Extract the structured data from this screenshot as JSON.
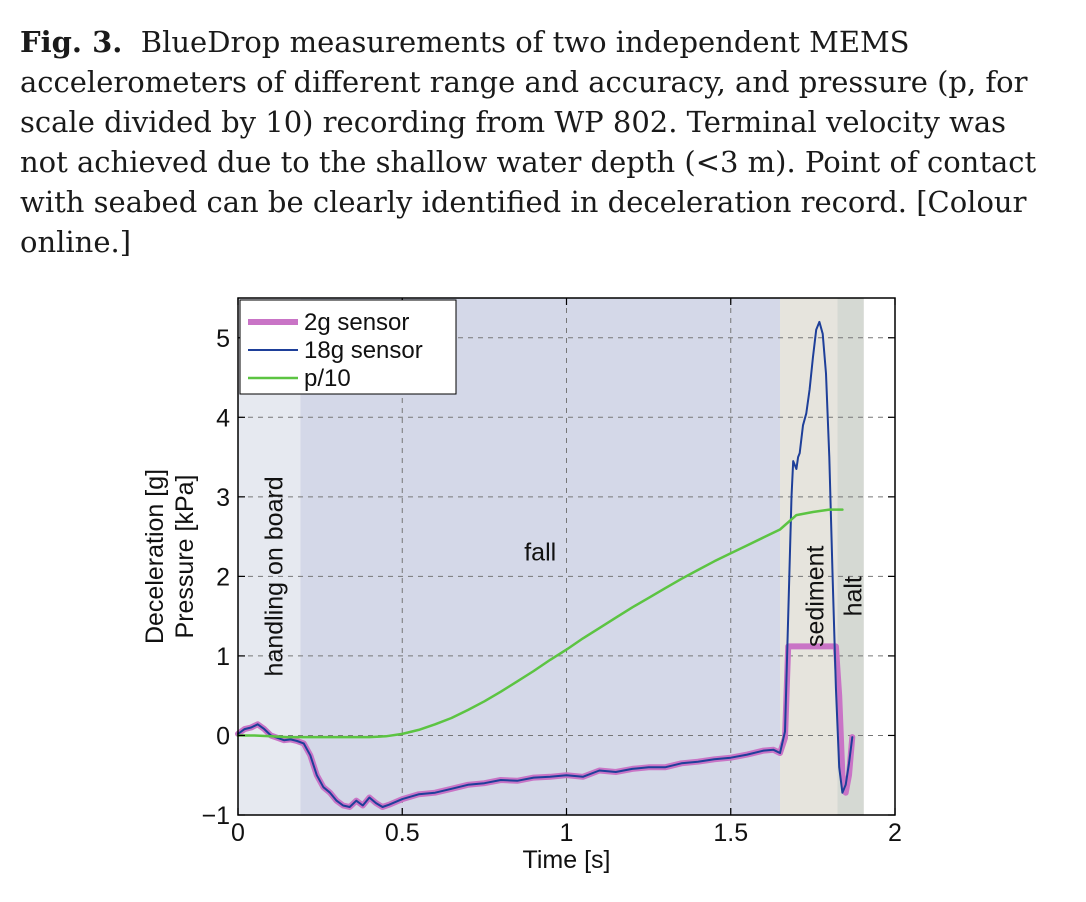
{
  "caption": {
    "label": "Fig. 3.",
    "text": "BlueDrop measurements of two independent MEMS accelerometers of different range and accuracy, and pressure (p, for scale divided by 10) recording from WP 802. Terminal velocity was not achieved due to the shallow water depth (<3 m). Point of contact with seabed can be clearly identified in deceleration record. [Colour online.]"
  },
  "chart_data": {
    "type": "line",
    "xlabel": "Time [s]",
    "ylabel": [
      "Deceleration [g]",
      "Pressure [kPa]"
    ],
    "xlim": [
      0,
      2
    ],
    "ylim": [
      -1,
      5.5
    ],
    "xticks": [
      0,
      0.5,
      1,
      1.5,
      2
    ],
    "xtick_labels": [
      "0",
      "0.5",
      "1",
      "1.5",
      "2"
    ],
    "yticks": [
      -1,
      0,
      1,
      2,
      3,
      4,
      5
    ],
    "ytick_labels": [
      "−1",
      "0",
      "1",
      "2",
      "3",
      "4",
      "5"
    ],
    "grid": true,
    "legend_position": "top-left",
    "regions": [
      {
        "label": "handling on board",
        "x0": 0,
        "x1": 0.19,
        "color": "#e6e9f0",
        "label_orientation": "vertical"
      },
      {
        "label": "fall",
        "x0": 0.19,
        "x1": 1.65,
        "color": "#d4d8e8",
        "label_orientation": "horizontal"
      },
      {
        "label": "sediment",
        "x0": 1.65,
        "x1": 1.825,
        "color": "#e6e4dd",
        "label_orientation": "vertical"
      },
      {
        "label": "halt",
        "x0": 1.825,
        "x1": 1.905,
        "color": "#d5d9d3",
        "label_orientation": "vertical"
      }
    ],
    "series": [
      {
        "name": "2g sensor",
        "color": "#c974c6",
        "width": 6,
        "x": [
          0,
          0.02,
          0.04,
          0.06,
          0.08,
          0.1,
          0.12,
          0.14,
          0.16,
          0.18,
          0.2,
          0.22,
          0.24,
          0.26,
          0.28,
          0.3,
          0.32,
          0.34,
          0.36,
          0.38,
          0.4,
          0.42,
          0.44,
          0.46,
          0.5,
          0.55,
          0.6,
          0.65,
          0.7,
          0.75,
          0.8,
          0.85,
          0.9,
          0.95,
          1.0,
          1.05,
          1.1,
          1.15,
          1.2,
          1.25,
          1.3,
          1.35,
          1.4,
          1.45,
          1.5,
          1.55,
          1.6,
          1.63,
          1.65,
          1.665,
          1.675,
          1.82,
          1.83,
          1.84,
          1.85,
          1.86,
          1.87
        ],
        "values": [
          0.02,
          0.08,
          0.1,
          0.14,
          0.08,
          0.0,
          -0.03,
          -0.06,
          -0.05,
          -0.07,
          -0.1,
          -0.25,
          -0.5,
          -0.65,
          -0.72,
          -0.82,
          -0.88,
          -0.9,
          -0.82,
          -0.88,
          -0.78,
          -0.85,
          -0.9,
          -0.87,
          -0.8,
          -0.74,
          -0.72,
          -0.67,
          -0.62,
          -0.6,
          -0.56,
          -0.57,
          -0.53,
          -0.52,
          -0.5,
          -0.52,
          -0.44,
          -0.46,
          -0.42,
          -0.4,
          -0.4,
          -0.35,
          -0.33,
          -0.3,
          -0.28,
          -0.24,
          -0.19,
          -0.18,
          -0.22,
          -0.03,
          1.12,
          1.12,
          0.5,
          -0.5,
          -0.72,
          -0.5,
          -0.02
        ]
      },
      {
        "name": "18g sensor",
        "color": "#1e3f99",
        "width": 2,
        "x": [
          0,
          0.02,
          0.04,
          0.06,
          0.08,
          0.1,
          0.12,
          0.14,
          0.16,
          0.18,
          0.2,
          0.22,
          0.24,
          0.26,
          0.28,
          0.3,
          0.32,
          0.34,
          0.36,
          0.38,
          0.4,
          0.42,
          0.44,
          0.46,
          0.5,
          0.55,
          0.6,
          0.65,
          0.7,
          0.75,
          0.8,
          0.85,
          0.9,
          0.95,
          1.0,
          1.05,
          1.1,
          1.15,
          1.2,
          1.25,
          1.3,
          1.35,
          1.4,
          1.45,
          1.5,
          1.55,
          1.6,
          1.63,
          1.65,
          1.665,
          1.675,
          1.685,
          1.69,
          1.7,
          1.705,
          1.71,
          1.72,
          1.73,
          1.74,
          1.75,
          1.76,
          1.77,
          1.78,
          1.79,
          1.8,
          1.81,
          1.82,
          1.83,
          1.84,
          1.85,
          1.86,
          1.87
        ],
        "values": [
          0.02,
          0.08,
          0.1,
          0.14,
          0.08,
          0.0,
          -0.03,
          -0.06,
          -0.05,
          -0.07,
          -0.1,
          -0.25,
          -0.5,
          -0.65,
          -0.72,
          -0.82,
          -0.88,
          -0.9,
          -0.82,
          -0.88,
          -0.78,
          -0.85,
          -0.9,
          -0.87,
          -0.8,
          -0.74,
          -0.72,
          -0.67,
          -0.62,
          -0.6,
          -0.56,
          -0.57,
          -0.53,
          -0.52,
          -0.5,
          -0.52,
          -0.44,
          -0.46,
          -0.42,
          -0.4,
          -0.4,
          -0.35,
          -0.33,
          -0.3,
          -0.28,
          -0.24,
          -0.19,
          -0.18,
          -0.22,
          0.05,
          1.5,
          3.0,
          3.45,
          3.35,
          3.5,
          3.55,
          3.9,
          4.05,
          4.35,
          4.75,
          5.1,
          5.2,
          5.05,
          4.55,
          3.5,
          2.0,
          0.6,
          -0.4,
          -0.72,
          -0.62,
          -0.35,
          -0.02
        ]
      },
      {
        "name": "p/10",
        "color": "#5cc442",
        "width": 2.5,
        "x": [
          0,
          0.05,
          0.1,
          0.15,
          0.2,
          0.25,
          0.3,
          0.35,
          0.4,
          0.45,
          0.5,
          0.55,
          0.6,
          0.65,
          0.7,
          0.75,
          0.8,
          0.85,
          0.9,
          0.95,
          1.0,
          1.05,
          1.1,
          1.15,
          1.2,
          1.25,
          1.3,
          1.35,
          1.4,
          1.45,
          1.5,
          1.55,
          1.6,
          1.65,
          1.7,
          1.75,
          1.8,
          1.84
        ],
        "values": [
          0.0,
          0.0,
          -0.01,
          -0.02,
          -0.02,
          -0.02,
          -0.02,
          -0.02,
          -0.02,
          -0.01,
          0.02,
          0.07,
          0.14,
          0.22,
          0.32,
          0.43,
          0.55,
          0.68,
          0.81,
          0.95,
          1.08,
          1.22,
          1.35,
          1.48,
          1.61,
          1.73,
          1.85,
          1.97,
          2.08,
          2.19,
          2.29,
          2.39,
          2.49,
          2.59,
          2.77,
          2.81,
          2.84,
          2.84
        ]
      }
    ]
  }
}
